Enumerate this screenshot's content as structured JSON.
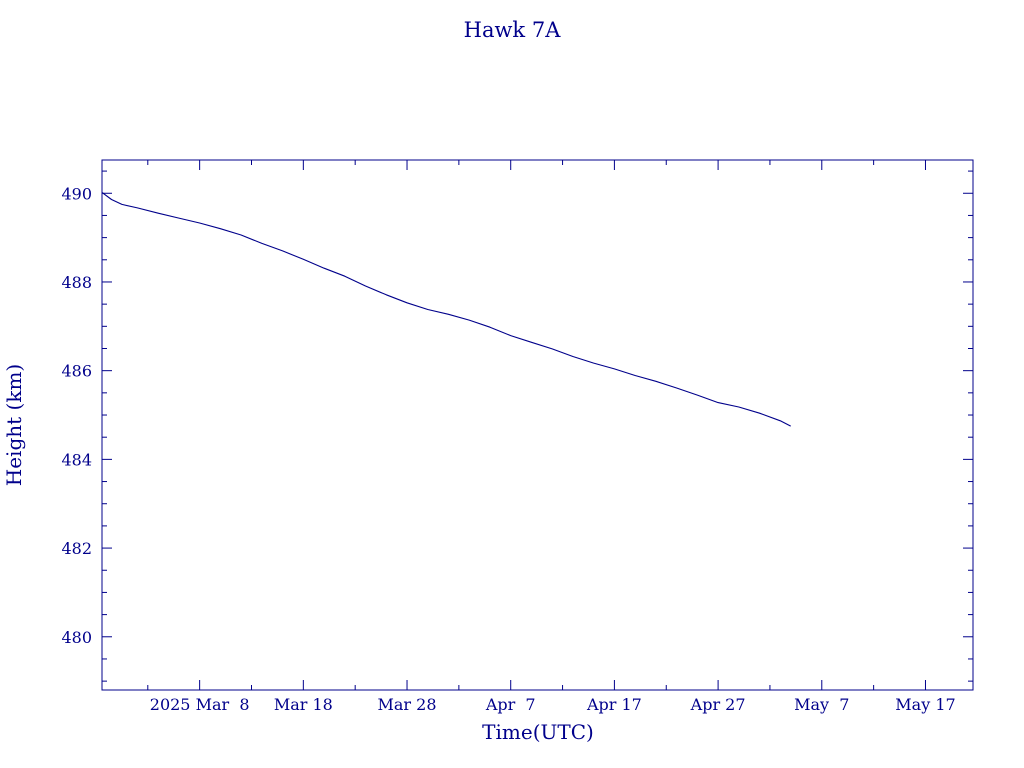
{
  "chart_data": {
    "type": "line",
    "title": "Hawk 7A",
    "xlabel": "Time(UTC)",
    "ylabel": "Height (km)",
    "x_tick_labels": [
      {
        "date": "2025-03-08",
        "label": "2025 Mar  8"
      },
      {
        "date": "2025-03-18",
        "label": "Mar 18"
      },
      {
        "date": "2025-03-28",
        "label": "Mar 28"
      },
      {
        "date": "2025-04-07",
        "label": "Apr  7"
      },
      {
        "date": "2025-04-17",
        "label": "Apr 17"
      },
      {
        "date": "2025-04-27",
        "label": "Apr 27"
      },
      {
        "date": "2025-05-07",
        "label": "May  7"
      },
      {
        "date": "2025-05-17",
        "label": "May 17"
      }
    ],
    "y_ticks": [
      480,
      482,
      484,
      486,
      488,
      490
    ],
    "xlim": [
      "2025-02-26T14:00",
      "2025-05-21T14:00"
    ],
    "ylim": [
      478.8,
      490.75
    ],
    "grid": false,
    "series": [
      {
        "x": [
          "2025-02-26T14:00",
          "2025-02-27T12:00",
          "2025-02-28T12:00",
          "2025-03-02T00:00",
          "2025-03-04T00:00",
          "2025-03-06T00:00",
          "2025-03-08T00:00",
          "2025-03-10T00:00",
          "2025-03-12T00:00",
          "2025-03-14T00:00",
          "2025-03-16T00:00",
          "2025-03-18T00:00",
          "2025-03-20T00:00",
          "2025-03-22T00:00",
          "2025-03-24T00:00",
          "2025-03-26T00:00",
          "2025-03-28T00:00",
          "2025-03-30T00:00",
          "2025-04-01T00:00",
          "2025-04-03T00:00",
          "2025-04-05T00:00",
          "2025-04-07T00:00",
          "2025-04-09T00:00",
          "2025-04-11T00:00",
          "2025-04-13T00:00",
          "2025-04-15T00:00",
          "2025-04-17T00:00",
          "2025-04-19T00:00",
          "2025-04-21T00:00",
          "2025-04-23T00:00",
          "2025-04-25T00:00",
          "2025-04-27T00:00",
          "2025-04-29T00:00",
          "2025-05-01T00:00",
          "2025-05-03T00:00",
          "2025-05-04T00:00"
        ],
        "y": [
          490.02,
          489.86,
          489.75,
          489.67,
          489.55,
          489.44,
          489.33,
          489.2,
          489.06,
          488.87,
          488.7,
          488.51,
          488.31,
          488.13,
          487.91,
          487.71,
          487.53,
          487.38,
          487.27,
          487.14,
          486.98,
          486.79,
          486.64,
          486.49,
          486.32,
          486.17,
          486.04,
          485.89,
          485.76,
          485.61,
          485.45,
          485.28,
          485.18,
          485.04,
          484.87,
          484.75
        ]
      }
    ]
  },
  "colors": {
    "ink": "#00008b",
    "background": "#ffffff"
  }
}
